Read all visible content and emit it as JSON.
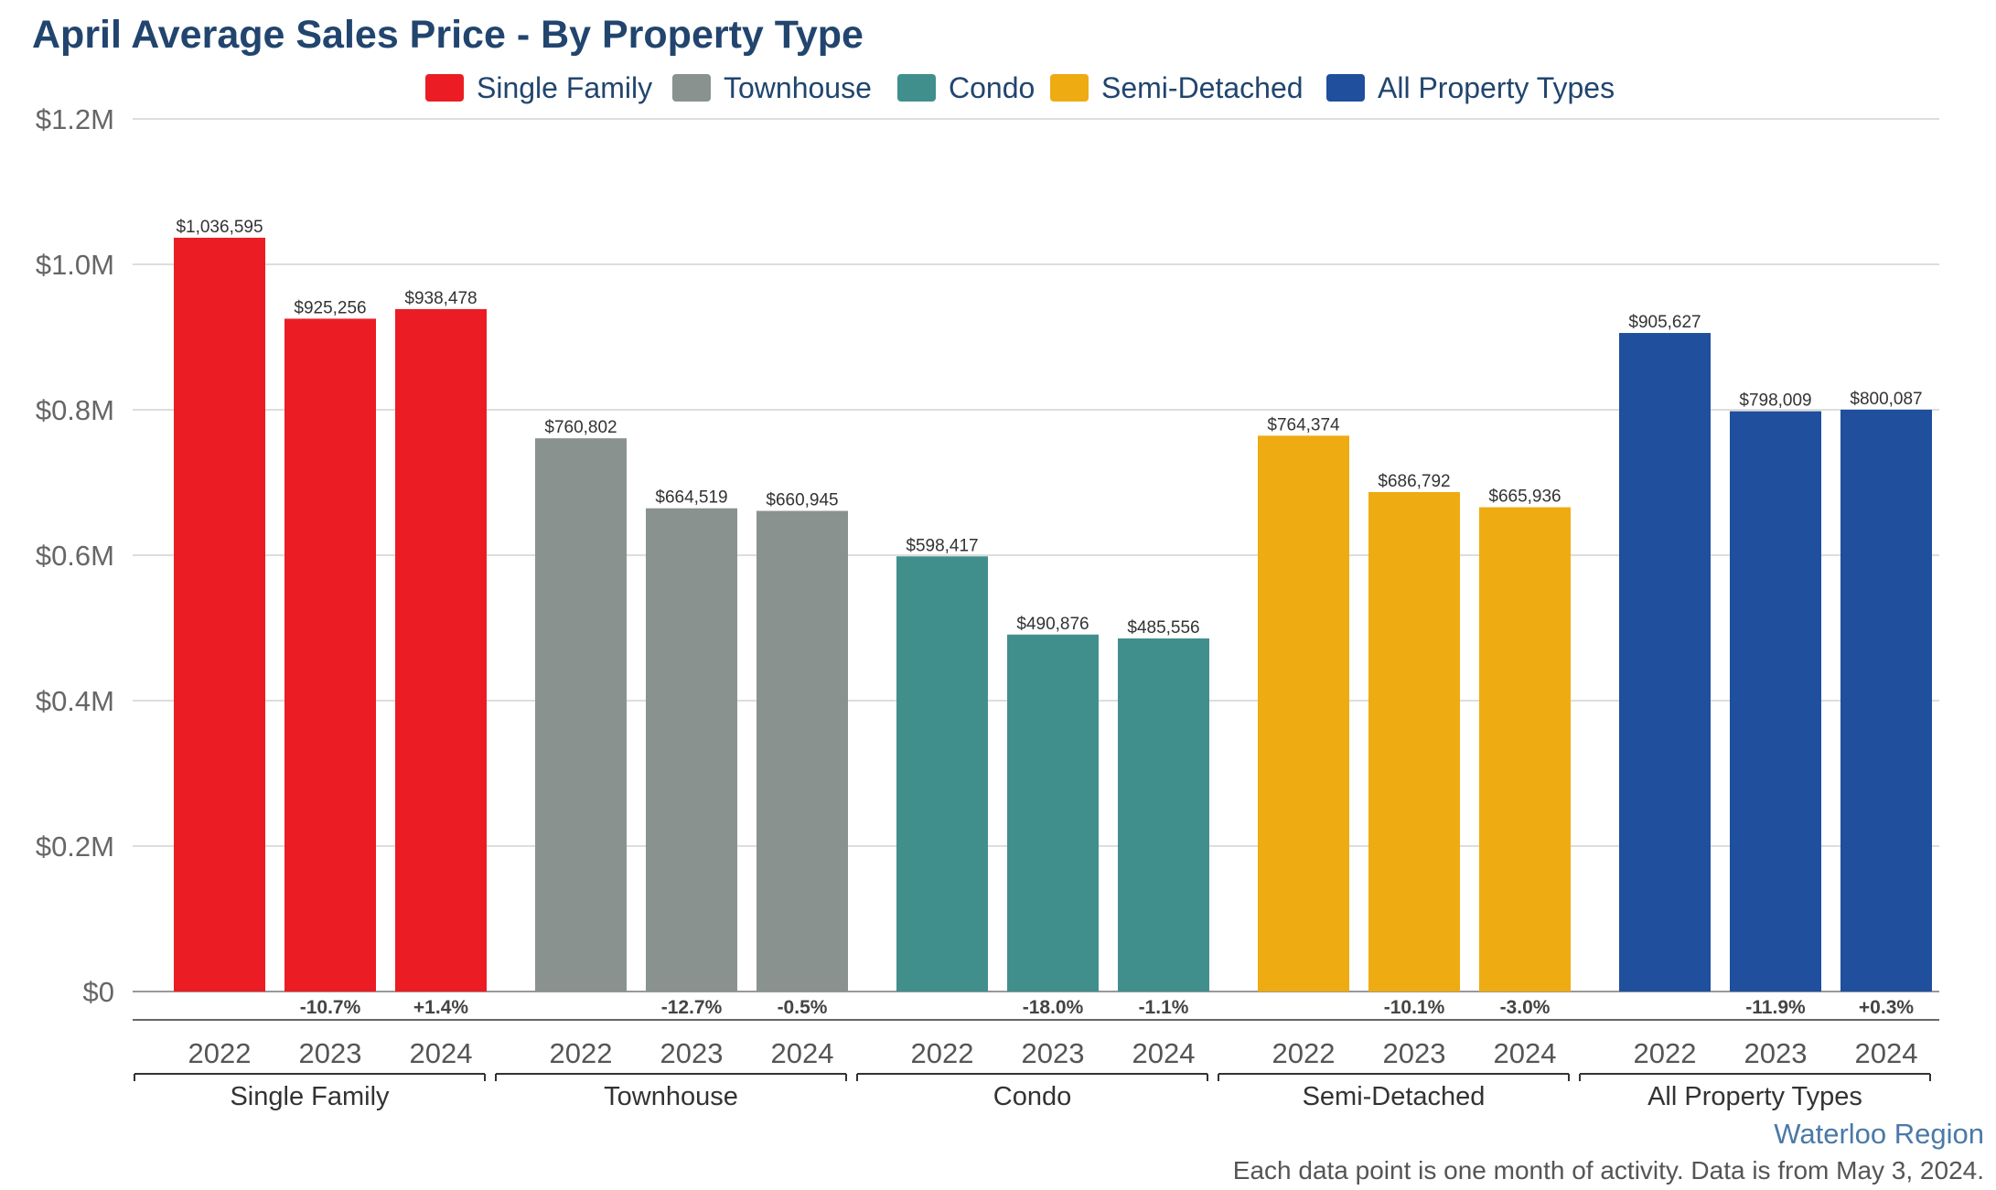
{
  "chart_data": {
    "type": "bar",
    "title": "April Average Sales Price - By Property Type",
    "groups": [
      "Single Family",
      "Townhouse",
      "Condo",
      "Semi-Detached",
      "All Property Types"
    ],
    "years": [
      "2022",
      "2023",
      "2024"
    ],
    "series": [
      {
        "name": "Single Family",
        "color": "#ec1c24",
        "values": [
          1036595,
          925256,
          938478
        ],
        "value_labels": [
          "$1,036,595",
          "$925,256",
          "$938,478"
        ],
        "changes": [
          "",
          "-10.7%",
          "+1.4%"
        ]
      },
      {
        "name": "Townhouse",
        "color": "#8a9290",
        "values": [
          760802,
          664519,
          660945
        ],
        "value_labels": [
          "$760,802",
          "$664,519",
          "$660,945"
        ],
        "changes": [
          "",
          "-12.7%",
          "-0.5%"
        ]
      },
      {
        "name": "Condo",
        "color": "#418f8d",
        "values": [
          598417,
          490876,
          485556
        ],
        "value_labels": [
          "$598,417",
          "$490,876",
          "$485,556"
        ],
        "changes": [
          "",
          "-18.0%",
          "-1.1%"
        ]
      },
      {
        "name": "Semi-Detached",
        "color": "#eeab12",
        "values": [
          764374,
          686792,
          665936
        ],
        "value_labels": [
          "$764,374",
          "$686,792",
          "$665,936"
        ],
        "changes": [
          "",
          "-10.1%",
          "-3.0%"
        ]
      },
      {
        "name": "All Property Types",
        "color": "#1f4f9d",
        "values": [
          905627,
          798009,
          800087
        ],
        "value_labels": [
          "$905,627",
          "$798,009",
          "$800,087"
        ],
        "changes": [
          "",
          "-11.9%",
          "+0.3%"
        ]
      }
    ],
    "ylim": [
      0,
      1200000
    ],
    "yticks": [
      0,
      200000,
      400000,
      600000,
      800000,
      1000000,
      1200000
    ],
    "ytick_labels": [
      "$0",
      "$0.2M",
      "$0.4M",
      "$0.6M",
      "$0.8M",
      "$1.0M",
      "$1.2M"
    ],
    "grid": true,
    "legend_position": "top-center"
  },
  "legend": [
    {
      "label": "Single Family",
      "color": "#ec1c24"
    },
    {
      "label": "Townhouse",
      "color": "#8a9290"
    },
    {
      "label": "Condo",
      "color": "#418f8d"
    },
    {
      "label": "Semi-Detached",
      "color": "#eeab12"
    },
    {
      "label": "All Property Types",
      "color": "#1f4f9d"
    }
  ],
  "region": "Waterloo Region",
  "footnote": "Each data point is one month of activity. Data is from May 3, 2024."
}
